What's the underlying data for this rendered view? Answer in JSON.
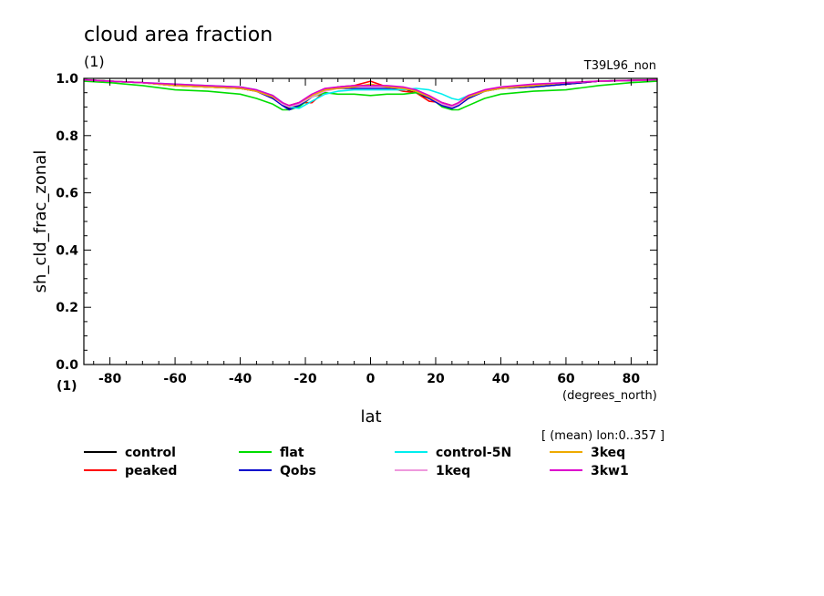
{
  "chart_data": {
    "type": "line",
    "title": "cloud area fraction",
    "subtitle": "(1)",
    "run_label": "T39L96_non",
    "ylabel": "sh_cld_frac_zonal",
    "xlabel": "lat",
    "x_units": "(degrees_north)",
    "y_units": "(1)",
    "note": "[ (mean) lon:0..357 ]",
    "xlim": [
      -88,
      88
    ],
    "ylim": [
      0.0,
      1.0
    ],
    "x_ticks": [
      "-80",
      "-60",
      "-40",
      "-20",
      "0",
      "20",
      "40",
      "60",
      "80"
    ],
    "y_ticks": [
      "0.0",
      "0.2",
      "0.4",
      "0.6",
      "0.8",
      "1.0"
    ],
    "x": [
      -88,
      -80,
      -70,
      -60,
      -50,
      -40,
      -35,
      -30,
      -27,
      -25,
      -22,
      -18,
      -14,
      -10,
      -5,
      0,
      5,
      10,
      14,
      18,
      22,
      25,
      27,
      30,
      35,
      40,
      50,
      60,
      70,
      80,
      88
    ],
    "series": [
      {
        "name": "control",
        "color": "#000000",
        "values": [
          0.995,
          0.99,
          0.985,
          0.975,
          0.97,
          0.965,
          0.955,
          0.935,
          0.91,
          0.895,
          0.91,
          0.935,
          0.96,
          0.965,
          0.97,
          0.975,
          0.97,
          0.965,
          0.95,
          0.93,
          0.91,
          0.895,
          0.905,
          0.93,
          0.955,
          0.965,
          0.97,
          0.98,
          0.99,
          0.992,
          0.995
        ]
      },
      {
        "name": "peaked",
        "color": "#ff0000",
        "values": [
          0.995,
          0.99,
          0.985,
          0.975,
          0.97,
          0.965,
          0.955,
          0.93,
          0.91,
          0.905,
          0.915,
          0.915,
          0.955,
          0.97,
          0.975,
          0.99,
          0.97,
          0.955,
          0.95,
          0.92,
          0.915,
          0.905,
          0.91,
          0.935,
          0.955,
          0.965,
          0.975,
          0.98,
          0.99,
          0.993,
          0.995
        ]
      },
      {
        "name": "flat",
        "color": "#00dd00",
        "values": [
          0.99,
          0.985,
          0.975,
          0.96,
          0.955,
          0.945,
          0.93,
          0.91,
          0.89,
          0.89,
          0.9,
          0.935,
          0.95,
          0.945,
          0.945,
          0.94,
          0.945,
          0.945,
          0.95,
          0.935,
          0.9,
          0.89,
          0.89,
          0.905,
          0.93,
          0.945,
          0.955,
          0.96,
          0.975,
          0.985,
          0.99
        ]
      },
      {
        "name": "Qobs",
        "color": "#0000cc",
        "values": [
          0.995,
          0.99,
          0.985,
          0.975,
          0.97,
          0.965,
          0.955,
          0.93,
          0.905,
          0.89,
          0.905,
          0.935,
          0.96,
          0.965,
          0.965,
          0.965,
          0.965,
          0.965,
          0.955,
          0.93,
          0.905,
          0.895,
          0.905,
          0.93,
          0.955,
          0.965,
          0.97,
          0.98,
          0.99,
          0.993,
          0.995
        ]
      },
      {
        "name": "control-5N",
        "color": "#00eeee",
        "values": [
          0.995,
          0.99,
          0.985,
          0.98,
          0.975,
          0.97,
          0.96,
          0.94,
          0.915,
          0.9,
          0.895,
          0.92,
          0.945,
          0.955,
          0.96,
          0.96,
          0.96,
          0.96,
          0.965,
          0.96,
          0.945,
          0.93,
          0.925,
          0.94,
          0.955,
          0.965,
          0.975,
          0.985,
          0.99,
          0.993,
          0.995
        ]
      },
      {
        "name": "1keq",
        "color": "#ee99dd",
        "values": [
          0.995,
          0.99,
          0.985,
          0.975,
          0.97,
          0.965,
          0.955,
          0.935,
          0.91,
          0.9,
          0.91,
          0.935,
          0.955,
          0.965,
          0.97,
          0.97,
          0.97,
          0.965,
          0.955,
          0.935,
          0.91,
          0.9,
          0.91,
          0.935,
          0.955,
          0.965,
          0.975,
          0.985,
          0.99,
          0.993,
          0.995
        ]
      },
      {
        "name": "3keq",
        "color": "#eeaa00",
        "values": [
          0.995,
          0.99,
          0.985,
          0.975,
          0.97,
          0.965,
          0.955,
          0.935,
          0.915,
          0.905,
          0.915,
          0.94,
          0.96,
          0.965,
          0.97,
          0.98,
          0.97,
          0.965,
          0.955,
          0.935,
          0.915,
          0.905,
          0.915,
          0.935,
          0.955,
          0.965,
          0.975,
          0.985,
          0.99,
          0.993,
          0.995
        ]
      },
      {
        "name": "3kw1",
        "color": "#dd00cc",
        "values": [
          0.995,
          0.99,
          0.985,
          0.98,
          0.975,
          0.97,
          0.96,
          0.94,
          0.915,
          0.905,
          0.915,
          0.945,
          0.965,
          0.97,
          0.975,
          0.975,
          0.975,
          0.97,
          0.96,
          0.94,
          0.915,
          0.905,
          0.915,
          0.94,
          0.96,
          0.97,
          0.98,
          0.985,
          0.99,
          0.993,
          0.995
        ]
      }
    ],
    "legend_order": [
      "control",
      "flat",
      "control-5N",
      "3keq",
      "peaked",
      "Qobs",
      "1keq",
      "3kw1"
    ],
    "legend_placement": "bottom",
    "grid": false
  }
}
